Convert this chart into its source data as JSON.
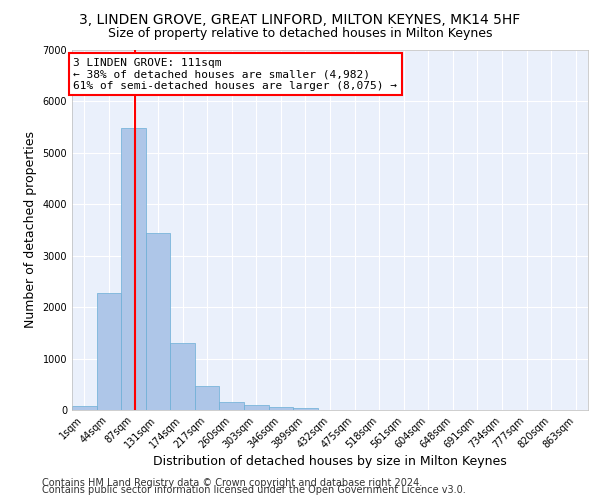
{
  "title_line1": "3, LINDEN GROVE, GREAT LINFORD, MILTON KEYNES, MK14 5HF",
  "title_line2": "Size of property relative to detached houses in Milton Keynes",
  "xlabel": "Distribution of detached houses by size in Milton Keynes",
  "ylabel": "Number of detached properties",
  "footer_line1": "Contains HM Land Registry data © Crown copyright and database right 2024.",
  "footer_line2": "Contains public sector information licensed under the Open Government Licence v3.0.",
  "bar_labels": [
    "1sqm",
    "44sqm",
    "87sqm",
    "131sqm",
    "174sqm",
    "217sqm",
    "260sqm",
    "303sqm",
    "346sqm",
    "389sqm",
    "432sqm",
    "475sqm",
    "518sqm",
    "561sqm",
    "604sqm",
    "648sqm",
    "691sqm",
    "734sqm",
    "777sqm",
    "820sqm",
    "863sqm"
  ],
  "bar_values": [
    80,
    2280,
    5480,
    3450,
    1310,
    470,
    160,
    90,
    55,
    30,
    0,
    0,
    0,
    0,
    0,
    0,
    0,
    0,
    0,
    0,
    0
  ],
  "bar_color": "#aec6e8",
  "bar_edge_color": "#6aaed6",
  "vline_color": "red",
  "annotation_text": "3 LINDEN GROVE: 111sqm\n← 38% of detached houses are smaller (4,982)\n61% of semi-detached houses are larger (8,075) →",
  "annotation_box_color": "red",
  "annotation_box_facecolor": "white",
  "ylim": [
    0,
    7000
  ],
  "yticks": [
    0,
    1000,
    2000,
    3000,
    4000,
    5000,
    6000,
    7000
  ],
  "bg_color": "#eaf0fb",
  "grid_color": "white",
  "title_fontsize": 10,
  "subtitle_fontsize": 9,
  "axis_label_fontsize": 9,
  "tick_fontsize": 7,
  "footer_fontsize": 7,
  "annotation_fontsize": 8
}
